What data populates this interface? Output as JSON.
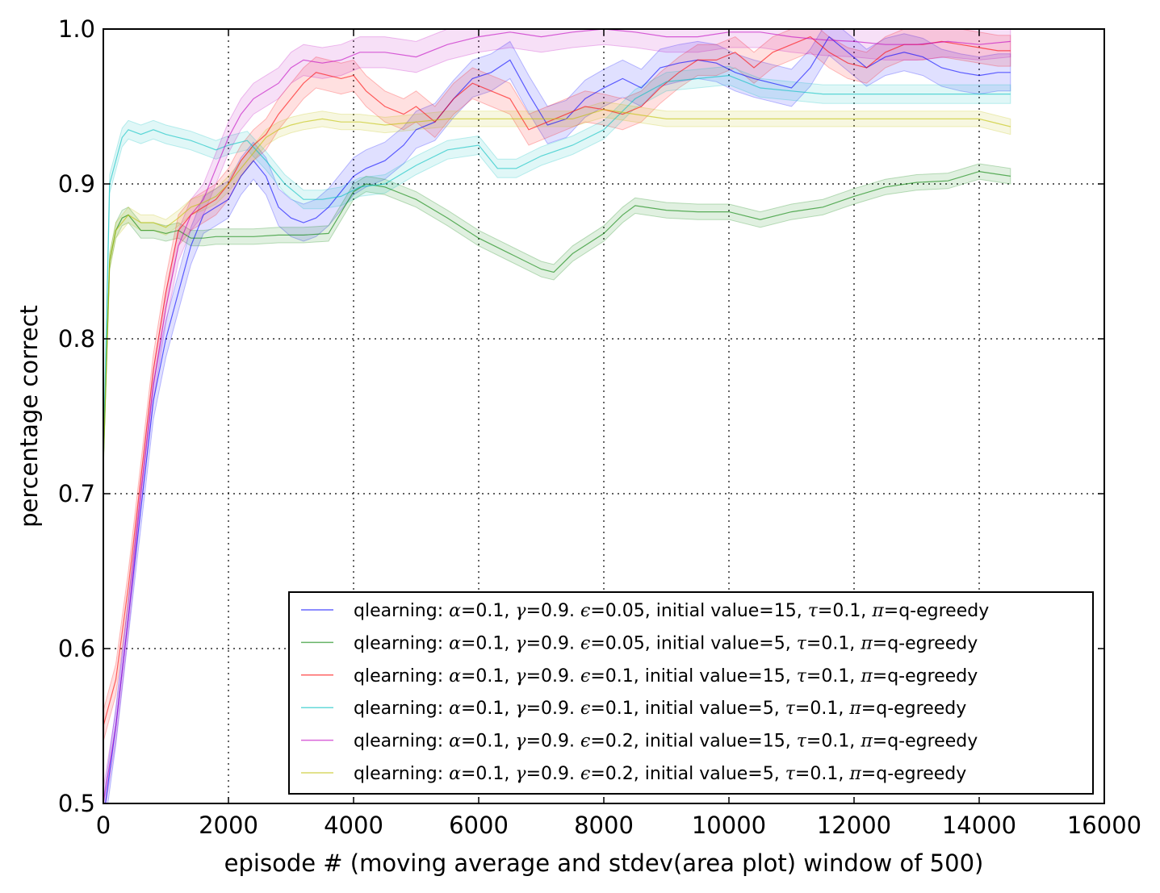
{
  "chart_data": {
    "type": "line",
    "title": "",
    "xlabel": "episode # (moving average and stdev(area plot) window of 500)",
    "ylabel": "percentage correct",
    "xlim": [
      0,
      16000
    ],
    "ylim": [
      0.5,
      1.0
    ],
    "x_ticks": [
      0,
      2000,
      4000,
      6000,
      8000,
      10000,
      12000,
      14000,
      16000
    ],
    "x_tick_labels": [
      "0",
      "2000",
      "4000",
      "6000",
      "8000",
      "10000",
      "12000",
      "14000",
      "16000"
    ],
    "y_ticks": [
      0.5,
      0.6,
      0.7,
      0.8,
      0.9,
      1.0
    ],
    "y_tick_labels": [
      "0.5",
      "0.6",
      "0.7",
      "0.8",
      "0.9",
      "1.0"
    ],
    "grid": true,
    "legend_position": "bottom-right",
    "series": [
      {
        "name": "qlearning: α=0.1, γ=0.9. ϵ=0.05, initial value=15, τ=0.1, π=q-egreedy",
        "legend": {
          "prefix": "qlearning: ",
          "eps": "0.05",
          "init": "15"
        },
        "color": "#0000ff",
        "x": [
          0,
          200,
          400,
          600,
          800,
          1000,
          1200,
          1400,
          1600,
          1800,
          2000,
          2200,
          2400,
          2600,
          2800,
          3000,
          3200,
          3400,
          3600,
          3800,
          4000,
          4200,
          4500,
          4800,
          5000,
          5300,
          5600,
          5900,
          6200,
          6500,
          6800,
          7100,
          7400,
          7700,
          8000,
          8300,
          8600,
          8900,
          9200,
          9500,
          9800,
          10100,
          10400,
          10700,
          11000,
          11300,
          11600,
          11900,
          12200,
          12500,
          12800,
          13100,
          13400,
          13700,
          14000,
          14300,
          14500
        ],
        "y": [
          0.49,
          0.55,
          0.62,
          0.69,
          0.76,
          0.8,
          0.83,
          0.86,
          0.88,
          0.885,
          0.89,
          0.905,
          0.915,
          0.905,
          0.885,
          0.878,
          0.875,
          0.878,
          0.885,
          0.895,
          0.905,
          0.91,
          0.915,
          0.925,
          0.935,
          0.94,
          0.955,
          0.968,
          0.972,
          0.98,
          0.958,
          0.938,
          0.942,
          0.955,
          0.962,
          0.968,
          0.962,
          0.975,
          0.978,
          0.98,
          0.978,
          0.972,
          0.968,
          0.965,
          0.962,
          0.975,
          0.995,
          0.985,
          0.975,
          0.982,
          0.985,
          0.982,
          0.975,
          0.972,
          0.97,
          0.972,
          0.972
        ],
        "stdev": 0.012
      },
      {
        "name": "qlearning: α=0.1, γ=0.9. ϵ=0.05, initial value=5, τ=0.1, π=q-egreedy",
        "legend": {
          "prefix": "qlearning: ",
          "eps": "0.05",
          "init": "5"
        },
        "color": "#008000",
        "x": [
          0,
          100,
          200,
          300,
          400,
          500,
          600,
          800,
          1000,
          1200,
          1400,
          1600,
          1800,
          2000,
          2400,
          2800,
          3200,
          3600,
          4000,
          4200,
          4500,
          5000,
          5500,
          6000,
          6500,
          7000,
          7200,
          7500,
          8000,
          8300,
          8500,
          9000,
          9500,
          10000,
          10500,
          11000,
          11500,
          12000,
          12500,
          13000,
          13500,
          14000,
          14500
        ],
        "y": [
          0.72,
          0.85,
          0.87,
          0.878,
          0.88,
          0.875,
          0.87,
          0.87,
          0.868,
          0.87,
          0.865,
          0.865,
          0.866,
          0.866,
          0.866,
          0.867,
          0.867,
          0.868,
          0.895,
          0.9,
          0.898,
          0.89,
          0.878,
          0.865,
          0.855,
          0.845,
          0.843,
          0.855,
          0.868,
          0.88,
          0.886,
          0.883,
          0.882,
          0.882,
          0.877,
          0.882,
          0.885,
          0.892,
          0.898,
          0.901,
          0.902,
          0.908,
          0.905
        ],
        "stdev": 0.005
      },
      {
        "name": "qlearning: α=0.1, γ=0.9. ϵ=0.1, initial value=15, τ=0.1, π=q-egreedy",
        "legend": {
          "prefix": "qlearning: ",
          "eps": "0.1",
          "init": "15"
        },
        "color": "#ff0000",
        "x": [
          0,
          200,
          400,
          600,
          800,
          1000,
          1200,
          1400,
          1600,
          1800,
          2000,
          2200,
          2400,
          2600,
          2800,
          3000,
          3200,
          3400,
          3600,
          3800,
          4000,
          4200,
          4500,
          4800,
          5000,
          5300,
          5600,
          5900,
          6200,
          6500,
          6800,
          7100,
          7400,
          7700,
          8000,
          8300,
          8600,
          8900,
          9200,
          9500,
          9800,
          10100,
          10400,
          10700,
          11000,
          11300,
          11600,
          11900,
          12200,
          12500,
          12800,
          13100,
          13400,
          13700,
          14000,
          14300,
          14500
        ],
        "y": [
          0.55,
          0.58,
          0.64,
          0.71,
          0.78,
          0.83,
          0.87,
          0.88,
          0.885,
          0.89,
          0.9,
          0.915,
          0.925,
          0.932,
          0.945,
          0.955,
          0.965,
          0.972,
          0.97,
          0.968,
          0.97,
          0.96,
          0.95,
          0.945,
          0.95,
          0.94,
          0.955,
          0.965,
          0.96,
          0.955,
          0.935,
          0.94,
          0.945,
          0.95,
          0.948,
          0.945,
          0.95,
          0.962,
          0.972,
          0.98,
          0.98,
          0.985,
          0.975,
          0.985,
          0.99,
          0.995,
          0.985,
          0.978,
          0.975,
          0.985,
          0.99,
          0.99,
          0.992,
          0.99,
          0.988,
          0.986,
          0.986
        ],
        "stdev": 0.01
      },
      {
        "name": "qlearning: α=0.1, γ=0.9. ϵ=0.1, initial value=5, τ=0.1, π=q-egreedy",
        "legend": {
          "prefix": "qlearning: ",
          "eps": "0.1",
          "init": "5"
        },
        "color": "#00bfbf",
        "x": [
          0,
          100,
          200,
          300,
          400,
          600,
          800,
          1000,
          1200,
          1400,
          1600,
          1800,
          2000,
          2300,
          2600,
          2900,
          3200,
          3500,
          3800,
          4100,
          4500,
          5000,
          5500,
          6000,
          6300,
          6600,
          7000,
          7500,
          8000,
          8500,
          9000,
          9500,
          10000,
          10500,
          11000,
          11500,
          12000,
          12500,
          13000,
          13500,
          14000,
          14500
        ],
        "y": [
          0.72,
          0.9,
          0.915,
          0.93,
          0.935,
          0.932,
          0.935,
          0.932,
          0.93,
          0.928,
          0.925,
          0.922,
          0.925,
          0.928,
          0.915,
          0.9,
          0.89,
          0.89,
          0.892,
          0.898,
          0.9,
          0.912,
          0.922,
          0.925,
          0.91,
          0.91,
          0.918,
          0.925,
          0.935,
          0.955,
          0.966,
          0.968,
          0.97,
          0.962,
          0.96,
          0.958,
          0.958,
          0.958,
          0.958,
          0.958,
          0.958,
          0.958
        ],
        "stdev": 0.006
      },
      {
        "name": "qlearning: α=0.1, γ=0.9. ϵ=0.2, initial value=15, τ=0.1, π=q-egreedy",
        "legend": {
          "prefix": "qlearning: ",
          "eps": "0.2",
          "init": "15"
        },
        "color": "#bf00bf",
        "x": [
          0,
          200,
          400,
          600,
          800,
          1000,
          1200,
          1400,
          1600,
          1800,
          2000,
          2200,
          2400,
          2600,
          2800,
          3000,
          3200,
          3500,
          3800,
          4100,
          4500,
          5000,
          5500,
          6000,
          6500,
          7000,
          7500,
          8000,
          8500,
          9000,
          9500,
          10000,
          10500,
          11000,
          11500,
          12000,
          12500,
          13000,
          13500,
          14000,
          14500
        ],
        "y": [
          0.5,
          0.55,
          0.62,
          0.7,
          0.77,
          0.82,
          0.86,
          0.88,
          0.89,
          0.91,
          0.93,
          0.945,
          0.955,
          0.96,
          0.965,
          0.975,
          0.98,
          0.978,
          0.98,
          0.985,
          0.985,
          0.982,
          0.99,
          0.995,
          0.998,
          0.995,
          0.998,
          1.0,
          0.998,
          0.995,
          0.995,
          0.998,
          0.998,
          0.995,
          0.993,
          0.992,
          0.99,
          0.99,
          0.992,
          0.99,
          0.992
        ],
        "stdev": 0.01
      },
      {
        "name": "qlearning: α=0.1, γ=0.9. ϵ=0.2, initial value=5, τ=0.1, π=q-egreedy",
        "legend": {
          "prefix": "qlearning: ",
          "eps": "0.2",
          "init": "5"
        },
        "color": "#bfbf00",
        "x": [
          0,
          100,
          200,
          400,
          600,
          800,
          1000,
          1200,
          1400,
          1600,
          1800,
          2000,
          2200,
          2400,
          2600,
          2800,
          3000,
          3200,
          3500,
          3800,
          4100,
          4500,
          5000,
          5500,
          6000,
          6500,
          7000,
          7500,
          8000,
          8500,
          9000,
          9500,
          10000,
          10500,
          11000,
          11500,
          12000,
          12500,
          13000,
          13500,
          14000,
          14500
        ],
        "y": [
          0.72,
          0.85,
          0.87,
          0.88,
          0.875,
          0.875,
          0.872,
          0.878,
          0.885,
          0.888,
          0.892,
          0.9,
          0.91,
          0.92,
          0.93,
          0.935,
          0.938,
          0.94,
          0.942,
          0.94,
          0.94,
          0.938,
          0.94,
          0.942,
          0.942,
          0.942,
          0.942,
          0.942,
          0.948,
          0.945,
          0.942,
          0.942,
          0.942,
          0.942,
          0.942,
          0.942,
          0.942,
          0.942,
          0.942,
          0.942,
          0.942,
          0.937
        ],
        "stdev": 0.005
      }
    ]
  }
}
